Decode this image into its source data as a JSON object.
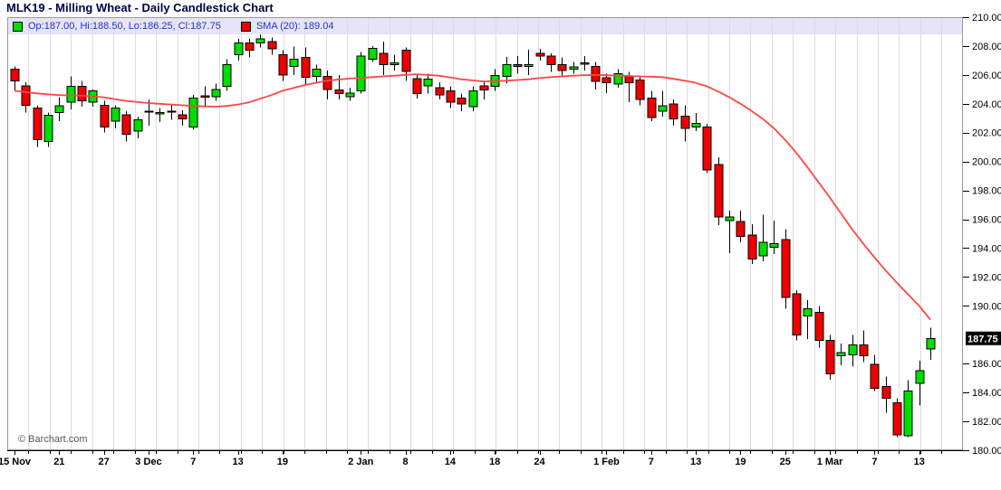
{
  "title": "MLK19 - Milling Wheat - Daily Candlestick Chart",
  "watermark": "© Barchart.com",
  "legend": {
    "ohlc": "Op:187.00, Hi:188.50, Lo:186.25, Cl:187.75",
    "sma": "SMA (20): 189.04"
  },
  "colors": {
    "up": "#00dd00",
    "down": "#ee0000",
    "sma": "#ff4545",
    "grid": "#dcdcdc",
    "border": "#999999",
    "legend_strip": "#e5e5f7",
    "legend_text": "#2233cc",
    "title_text": "#00004d",
    "axis_text": "#000000",
    "last_price_bg": "#000000",
    "last_price_text": "#ffffff",
    "watermark_text": "#555555"
  },
  "chart_data": {
    "type": "candlestick",
    "title": "MLK19 - Milling Wheat - Daily Candlestick Chart",
    "ylim": [
      180,
      210
    ],
    "y_tick_step": 2,
    "hidden_y_tick": 188,
    "grid": "vertical-only",
    "legend_position": "top-strip",
    "ohlc_format": [
      "open",
      "high",
      "low",
      "close"
    ],
    "last_close": 187.75,
    "sma_period": 20,
    "sma_last": 189.04,
    "x_labels": [
      {
        "i": 0,
        "label": "15 Nov"
      },
      {
        "i": 4,
        "label": "21"
      },
      {
        "i": 8,
        "label": "27"
      },
      {
        "i": 12,
        "label": "3 Dec"
      },
      {
        "i": 16,
        "label": "7"
      },
      {
        "i": 20,
        "label": "13"
      },
      {
        "i": 24,
        "label": "19"
      },
      {
        "i": 31,
        "label": "2 Jan"
      },
      {
        "i": 35,
        "label": "8"
      },
      {
        "i": 39,
        "label": "14"
      },
      {
        "i": 43,
        "label": "18"
      },
      {
        "i": 47,
        "label": "24"
      },
      {
        "i": 53,
        "label": "1 Feb"
      },
      {
        "i": 57,
        "label": "7"
      },
      {
        "i": 61,
        "label": "13"
      },
      {
        "i": 65,
        "label": "19"
      },
      {
        "i": 69,
        "label": "25"
      },
      {
        "i": 73,
        "label": "1 Mar"
      },
      {
        "i": 77,
        "label": "7"
      },
      {
        "i": 81,
        "label": "13"
      }
    ],
    "candles": [
      [
        206.4,
        206.6,
        204.85,
        205.6
      ],
      [
        205.25,
        205.5,
        203.4,
        203.9
      ],
      [
        203.7,
        203.9,
        201.0,
        201.5
      ],
      [
        201.4,
        203.4,
        201.0,
        203.2
      ],
      [
        203.4,
        204.45,
        202.8,
        203.85
      ],
      [
        204.1,
        205.9,
        203.6,
        205.2
      ],
      [
        205.2,
        205.6,
        203.8,
        204.2
      ],
      [
        204.1,
        205.0,
        203.8,
        204.9
      ],
      [
        203.9,
        204.2,
        202.0,
        202.4
      ],
      [
        202.8,
        203.9,
        202.3,
        203.7
      ],
      [
        203.25,
        203.5,
        201.4,
        201.9
      ],
      [
        202.1,
        203.1,
        201.6,
        202.9
      ],
      [
        203.5,
        204.3,
        202.5,
        203.45
      ],
      [
        203.3,
        203.7,
        202.75,
        203.4
      ],
      [
        203.5,
        203.9,
        202.9,
        203.45
      ],
      [
        203.25,
        203.55,
        202.5,
        202.95
      ],
      [
        202.4,
        204.6,
        202.2,
        204.4
      ],
      [
        204.55,
        205.2,
        203.8,
        204.45
      ],
      [
        204.5,
        205.4,
        204.2,
        205.0
      ],
      [
        205.2,
        207.1,
        204.9,
        206.7
      ],
      [
        207.4,
        208.5,
        207.0,
        208.2
      ],
      [
        208.2,
        208.5,
        207.2,
        207.7
      ],
      [
        208.2,
        208.8,
        207.9,
        208.5
      ],
      [
        208.3,
        208.6,
        207.4,
        207.8
      ],
      [
        207.4,
        207.7,
        205.6,
        206.0
      ],
      [
        206.6,
        207.95,
        206.0,
        207.1
      ],
      [
        207.2,
        207.9,
        205.3,
        205.85
      ],
      [
        205.9,
        206.7,
        205.5,
        206.4
      ],
      [
        205.9,
        206.3,
        204.3,
        205.0
      ],
      [
        204.95,
        206.0,
        204.3,
        204.7
      ],
      [
        204.5,
        205.1,
        204.2,
        204.75
      ],
      [
        204.9,
        207.6,
        204.7,
        207.3
      ],
      [
        207.1,
        208.0,
        206.9,
        207.85
      ],
      [
        207.5,
        208.3,
        206.0,
        206.7
      ],
      [
        206.7,
        207.4,
        206.3,
        206.85
      ],
      [
        207.7,
        207.9,
        205.6,
        206.25
      ],
      [
        205.75,
        206.1,
        204.35,
        204.7
      ],
      [
        205.25,
        206.1,
        204.7,
        205.7
      ],
      [
        205.1,
        205.5,
        204.3,
        204.6
      ],
      [
        204.9,
        205.2,
        203.7,
        204.1
      ],
      [
        204.4,
        204.7,
        203.5,
        204.0
      ],
      [
        203.8,
        205.2,
        203.5,
        204.9
      ],
      [
        205.25,
        205.6,
        204.3,
        204.95
      ],
      [
        205.2,
        206.4,
        204.9,
        205.95
      ],
      [
        205.9,
        207.25,
        205.4,
        206.7
      ],
      [
        206.7,
        207.3,
        206.1,
        206.6
      ],
      [
        206.6,
        207.75,
        206.0,
        206.7
      ],
      [
        207.5,
        207.8,
        207.0,
        207.3
      ],
      [
        207.3,
        207.5,
        206.2,
        206.7
      ],
      [
        206.7,
        207.2,
        205.9,
        206.3
      ],
      [
        206.4,
        206.9,
        206.1,
        206.55
      ],
      [
        206.85,
        207.3,
        206.3,
        206.75
      ],
      [
        206.6,
        206.9,
        205.0,
        205.55
      ],
      [
        205.8,
        206.1,
        204.75,
        205.45
      ],
      [
        205.35,
        206.4,
        205.1,
        206.1
      ],
      [
        205.9,
        206.2,
        204.1,
        205.45
      ],
      [
        205.65,
        205.9,
        203.9,
        204.3
      ],
      [
        204.4,
        204.9,
        202.8,
        203.05
      ],
      [
        203.5,
        204.9,
        203.1,
        203.85
      ],
      [
        204.0,
        204.3,
        202.5,
        202.95
      ],
      [
        203.15,
        203.9,
        201.4,
        202.3
      ],
      [
        202.4,
        203.35,
        202.1,
        202.65
      ],
      [
        202.4,
        202.6,
        199.2,
        199.4
      ],
      [
        199.8,
        200.3,
        195.6,
        196.15
      ],
      [
        195.9,
        196.6,
        193.65,
        196.15
      ],
      [
        195.85,
        196.6,
        194.4,
        194.8
      ],
      [
        194.9,
        195.65,
        192.9,
        193.25
      ],
      [
        193.45,
        196.3,
        193.1,
        194.4
      ],
      [
        194.05,
        195.9,
        193.6,
        194.3
      ],
      [
        194.6,
        195.3,
        189.8,
        190.6
      ],
      [
        190.85,
        191.1,
        187.6,
        188.0
      ],
      [
        189.3,
        190.4,
        187.7,
        189.8
      ],
      [
        189.55,
        190.0,
        187.1,
        187.6
      ],
      [
        187.6,
        188.0,
        184.9,
        185.3
      ],
      [
        186.55,
        187.4,
        185.9,
        186.75
      ],
      [
        186.6,
        188.0,
        185.8,
        187.3
      ],
      [
        187.3,
        188.3,
        186.1,
        186.55
      ],
      [
        185.95,
        186.6,
        184.1,
        184.3
      ],
      [
        184.4,
        185.1,
        182.6,
        183.6
      ],
      [
        183.3,
        183.6,
        180.9,
        181.05
      ],
      [
        181.0,
        184.85,
        180.9,
        184.1
      ],
      [
        184.65,
        186.2,
        183.1,
        185.5
      ],
      [
        187.0,
        188.5,
        186.25,
        187.75
      ]
    ],
    "sma20": [
      204.9,
      204.8,
      204.72,
      204.65,
      204.6,
      204.58,
      204.56,
      204.52,
      204.45,
      204.32,
      204.2,
      204.12,
      204.05,
      204.0,
      203.95,
      203.9,
      203.85,
      203.82,
      203.8,
      203.85,
      203.95,
      204.1,
      204.35,
      204.6,
      204.9,
      205.1,
      205.3,
      205.45,
      205.6,
      205.68,
      205.75,
      205.8,
      205.85,
      205.9,
      205.95,
      206.0,
      206.05,
      206.0,
      205.95,
      205.83,
      205.7,
      205.62,
      205.55,
      205.57,
      205.6,
      205.65,
      205.7,
      205.78,
      205.85,
      205.9,
      205.95,
      205.98,
      206.0,
      205.98,
      205.95,
      205.93,
      205.9,
      205.88,
      205.85,
      205.73,
      205.6,
      205.45,
      205.2,
      204.85,
      204.45,
      204.0,
      203.5,
      202.95,
      202.3,
      201.5,
      200.6,
      199.6,
      198.55,
      197.5,
      196.4,
      195.3,
      194.3,
      193.35,
      192.45,
      191.6,
      190.8,
      190.0,
      189.04
    ]
  }
}
